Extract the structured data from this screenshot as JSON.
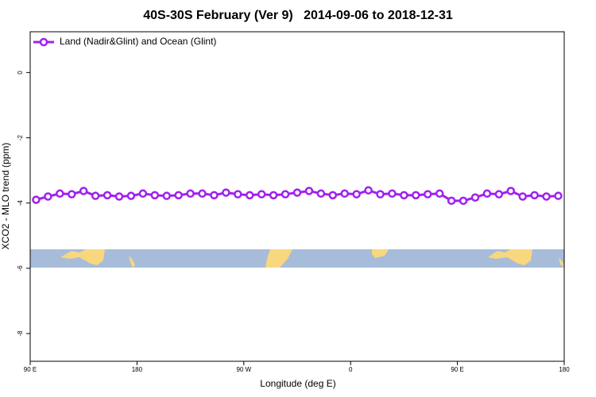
{
  "chart_data": {
    "type": "line",
    "title": "40S-30S February (Ver 9)   2014-09-06 to 2018-12-31",
    "xlabel": "Longitude (deg E)",
    "ylabel": "XCO2 - MLO trend (ppm)",
    "x": [
      95,
      105,
      115,
      125,
      135,
      145,
      155,
      165,
      175,
      185,
      195,
      205,
      215,
      225,
      235,
      245,
      255,
      265,
      275,
      285,
      295,
      305,
      315,
      325,
      335,
      345,
      355,
      365,
      375,
      385,
      395,
      405,
      415,
      425,
      435,
      445,
      455,
      465,
      475,
      485,
      495,
      505,
      515,
      525,
      535
    ],
    "series": [
      {
        "name": "Land (Nadir&Glint) and Ocean (Glint)",
        "color": "#a020f0",
        "values": [
          -3.9,
          -3.8,
          -3.71,
          -3.73,
          -3.63,
          -3.78,
          -3.76,
          -3.8,
          -3.78,
          -3.71,
          -3.76,
          -3.78,
          -3.76,
          -3.71,
          -3.71,
          -3.76,
          -3.68,
          -3.73,
          -3.76,
          -3.73,
          -3.76,
          -3.73,
          -3.68,
          -3.63,
          -3.71,
          -3.76,
          -3.71,
          -3.73,
          -3.61,
          -3.73,
          -3.71,
          -3.76,
          -3.76,
          -3.73,
          -3.71,
          -3.93,
          -3.93,
          -3.83,
          -3.71,
          -3.73,
          -3.63,
          -3.8,
          -3.76,
          -3.8,
          -3.78
        ]
      }
    ],
    "xlim": [
      90,
      540
    ],
    "xticks": [
      {
        "value": 90,
        "label": "90 E"
      },
      180,
      {
        "value": 270,
        "label": "90 W"
      },
      {
        "value": 360,
        "label": "0"
      },
      {
        "value": 450,
        "label": "90 E"
      },
      {
        "value": 540,
        "label": "180"
      }
    ],
    "ylim": [
      -8.85,
      1.25
    ],
    "yticks": [
      0,
      -2,
      -4,
      -6,
      -8
    ],
    "legend": "upper left"
  }
}
